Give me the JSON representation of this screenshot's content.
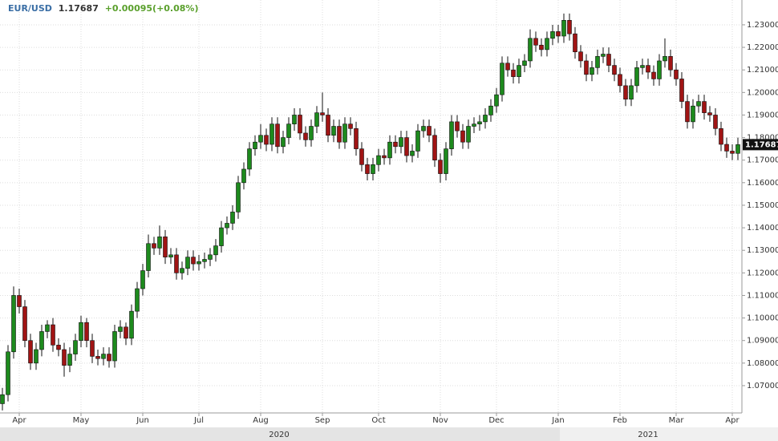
{
  "chart_data": {
    "type": "candlestick",
    "symbol": "EUR/USD",
    "last_price": 1.17687,
    "change": "+0.00095(+0.08%)",
    "years": [
      "2020",
      "2021"
    ],
    "up_color": "#1d8a1d",
    "down_color": "#a01414",
    "grid": true,
    "ylim": [
      1.0579,
      1.241
    ],
    "yticks": [
      {
        "value": 1.07,
        "label": "1.07000"
      },
      {
        "value": 1.08,
        "label": "1.08000"
      },
      {
        "value": 1.09,
        "label": "1.09000"
      },
      {
        "value": 1.1,
        "label": "1.10000"
      },
      {
        "value": 1.11,
        "label": "1.11000"
      },
      {
        "value": 1.12,
        "label": "1.12000"
      },
      {
        "value": 1.13,
        "label": "1.13000"
      },
      {
        "value": 1.14,
        "label": "1.14000"
      },
      {
        "value": 1.15,
        "label": "1.15000"
      },
      {
        "value": 1.16,
        "label": "1.16000"
      },
      {
        "value": 1.17,
        "label": "1.17000"
      },
      {
        "value": 1.18,
        "label": "1.18000"
      },
      {
        "value": 1.19,
        "label": "1.19000"
      },
      {
        "value": 1.2,
        "label": "1.20000"
      },
      {
        "value": 1.21,
        "label": "1.21000"
      },
      {
        "value": 1.22,
        "label": "1.22000"
      },
      {
        "value": 1.23,
        "label": "1.23000"
      }
    ],
    "categories": [
      null,
      null,
      null,
      "Apr",
      null,
      null,
      null,
      null,
      null,
      null,
      null,
      null,
      null,
      null,
      "May",
      null,
      null,
      null,
      null,
      null,
      null,
      null,
      null,
      null,
      null,
      "Jun",
      null,
      null,
      null,
      null,
      null,
      null,
      null,
      null,
      null,
      "Jul",
      null,
      null,
      null,
      null,
      null,
      null,
      null,
      null,
      null,
      null,
      "Aug",
      null,
      null,
      null,
      null,
      null,
      null,
      null,
      null,
      null,
      null,
      "Sep",
      null,
      null,
      null,
      null,
      null,
      null,
      null,
      null,
      null,
      "Oct",
      null,
      null,
      null,
      null,
      null,
      null,
      null,
      null,
      null,
      null,
      "Nov",
      null,
      null,
      null,
      null,
      null,
      null,
      null,
      null,
      null,
      "Dec",
      null,
      null,
      null,
      null,
      null,
      null,
      null,
      null,
      null,
      null,
      "Jan",
      null,
      null,
      null,
      null,
      null,
      null,
      null,
      null,
      null,
      null,
      "Feb",
      null,
      null,
      null,
      null,
      null,
      null,
      null,
      null,
      null,
      "Mar",
      null,
      null,
      null,
      null,
      null,
      null,
      null,
      null,
      null,
      "Apr",
      null
    ],
    "open": [
      1.062,
      1.066,
      1.085,
      1.11,
      1.105,
      1.09,
      1.08,
      1.086,
      1.094,
      1.097,
      1.088,
      1.086,
      1.079,
      1.084,
      1.09,
      1.098,
      1.09,
      1.083,
      1.082,
      1.084,
      1.081,
      1.094,
      1.096,
      1.091,
      1.103,
      1.113,
      1.121,
      1.133,
      1.131,
      1.136,
      1.127,
      1.128,
      1.12,
      1.122,
      1.127,
      1.124,
      1.125,
      1.126,
      1.128,
      1.132,
      1.14,
      1.142,
      1.147,
      1.16,
      1.166,
      1.175,
      1.178,
      1.181,
      1.177,
      1.186,
      1.176,
      1.18,
      1.186,
      1.19,
      1.182,
      1.179,
      1.185,
      1.191,
      1.19,
      1.181,
      1.185,
      1.178,
      1.186,
      1.184,
      1.175,
      1.168,
      1.164,
      1.168,
      1.172,
      1.171,
      1.178,
      1.176,
      1.18,
      1.172,
      1.174,
      1.183,
      1.185,
      1.181,
      1.17,
      1.164,
      1.175,
      1.187,
      1.183,
      1.178,
      1.185,
      1.186,
      1.187,
      1.19,
      1.194,
      1.199,
      1.213,
      1.21,
      1.207,
      1.212,
      1.214,
      1.224,
      1.221,
      1.219,
      1.224,
      1.227,
      1.225,
      1.232,
      1.226,
      1.218,
      1.214,
      1.208,
      1.211,
      1.216,
      1.217,
      1.212,
      1.208,
      1.203,
      1.197,
      1.203,
      1.211,
      1.212,
      1.209,
      1.206,
      1.214,
      1.216,
      1.21,
      1.206,
      1.196,
      1.187,
      1.194,
      1.196,
      1.191,
      1.19,
      1.184,
      1.177,
      1.174,
      1.173
    ],
    "high": [
      1.069,
      1.088,
      1.114,
      1.113,
      1.108,
      1.093,
      1.089,
      1.097,
      1.099,
      1.1,
      1.091,
      1.089,
      1.087,
      1.093,
      1.101,
      1.1,
      1.093,
      1.086,
      1.087,
      1.087,
      1.097,
      1.099,
      1.098,
      1.106,
      1.116,
      1.124,
      1.137,
      1.136,
      1.141,
      1.139,
      1.131,
      1.131,
      1.125,
      1.13,
      1.13,
      1.128,
      1.129,
      1.131,
      1.135,
      1.143,
      1.145,
      1.15,
      1.163,
      1.169,
      1.178,
      1.181,
      1.186,
      1.184,
      1.189,
      1.189,
      1.183,
      1.189,
      1.193,
      1.193,
      1.185,
      1.188,
      1.194,
      1.2,
      1.193,
      1.188,
      1.188,
      1.189,
      1.189,
      1.187,
      1.178,
      1.171,
      1.171,
      1.175,
      1.175,
      1.181,
      1.181,
      1.183,
      1.183,
      1.177,
      1.186,
      1.188,
      1.188,
      1.184,
      1.173,
      1.178,
      1.19,
      1.19,
      1.186,
      1.188,
      1.189,
      1.19,
      1.193,
      1.197,
      1.202,
      1.216,
      1.216,
      1.213,
      1.215,
      1.217,
      1.228,
      1.227,
      1.224,
      1.227,
      1.23,
      1.23,
      1.235,
      1.235,
      1.229,
      1.221,
      1.217,
      1.214,
      1.219,
      1.22,
      1.22,
      1.215,
      1.211,
      1.206,
      1.206,
      1.214,
      1.215,
      1.215,
      1.212,
      1.217,
      1.224,
      1.219,
      1.213,
      1.209,
      1.199,
      1.197,
      1.199,
      1.199,
      1.194,
      1.193,
      1.187,
      1.18,
      1.177,
      1.18
    ],
    "low": [
      1.059,
      1.063,
      1.082,
      1.102,
      1.087,
      1.077,
      1.077,
      1.083,
      1.091,
      1.085,
      1.083,
      1.074,
      1.076,
      1.081,
      1.087,
      1.087,
      1.08,
      1.079,
      1.079,
      1.078,
      1.078,
      1.091,
      1.088,
      1.088,
      1.1,
      1.11,
      1.118,
      1.128,
      1.128,
      1.124,
      1.124,
      1.117,
      1.117,
      1.119,
      1.121,
      1.121,
      1.122,
      1.123,
      1.125,
      1.129,
      1.137,
      1.139,
      1.144,
      1.157,
      1.163,
      1.172,
      1.175,
      1.174,
      1.174,
      1.173,
      1.173,
      1.177,
      1.183,
      1.179,
      1.176,
      1.176,
      1.182,
      1.187,
      1.178,
      1.178,
      1.175,
      1.175,
      1.181,
      1.172,
      1.165,
      1.161,
      1.161,
      1.165,
      1.168,
      1.168,
      1.173,
      1.173,
      1.169,
      1.169,
      1.171,
      1.18,
      1.178,
      1.167,
      1.16,
      1.161,
      1.172,
      1.18,
      1.175,
      1.175,
      1.182,
      1.183,
      1.184,
      1.187,
      1.191,
      1.196,
      1.207,
      1.204,
      1.204,
      1.209,
      1.211,
      1.218,
      1.216,
      1.216,
      1.221,
      1.222,
      1.222,
      1.223,
      1.215,
      1.211,
      1.205,
      1.205,
      1.208,
      1.213,
      1.209,
      1.205,
      1.2,
      1.194,
      1.194,
      1.2,
      1.208,
      1.206,
      1.203,
      1.203,
      1.211,
      1.207,
      1.203,
      1.193,
      1.184,
      1.184,
      1.191,
      1.188,
      1.187,
      1.181,
      1.174,
      1.171,
      1.17,
      1.17
    ],
    "close": [
      1.066,
      1.085,
      1.11,
      1.105,
      1.09,
      1.08,
      1.086,
      1.094,
      1.097,
      1.088,
      1.086,
      1.079,
      1.084,
      1.09,
      1.098,
      1.09,
      1.083,
      1.082,
      1.084,
      1.081,
      1.094,
      1.096,
      1.091,
      1.103,
      1.113,
      1.121,
      1.133,
      1.131,
      1.136,
      1.127,
      1.128,
      1.12,
      1.122,
      1.127,
      1.124,
      1.125,
      1.126,
      1.128,
      1.132,
      1.14,
      1.142,
      1.147,
      1.16,
      1.166,
      1.175,
      1.178,
      1.181,
      1.177,
      1.186,
      1.176,
      1.18,
      1.186,
      1.19,
      1.182,
      1.179,
      1.185,
      1.191,
      1.19,
      1.181,
      1.185,
      1.178,
      1.186,
      1.184,
      1.175,
      1.168,
      1.164,
      1.168,
      1.172,
      1.171,
      1.178,
      1.176,
      1.18,
      1.172,
      1.174,
      1.183,
      1.185,
      1.181,
      1.17,
      1.164,
      1.175,
      1.187,
      1.183,
      1.178,
      1.185,
      1.186,
      1.187,
      1.19,
      1.194,
      1.199,
      1.213,
      1.21,
      1.207,
      1.212,
      1.214,
      1.224,
      1.221,
      1.219,
      1.224,
      1.227,
      1.225,
      1.232,
      1.226,
      1.218,
      1.214,
      1.208,
      1.211,
      1.216,
      1.217,
      1.212,
      1.208,
      1.203,
      1.197,
      1.203,
      1.211,
      1.212,
      1.209,
      1.206,
      1.214,
      1.216,
      1.21,
      1.206,
      1.196,
      1.187,
      1.194,
      1.196,
      1.191,
      1.19,
      1.184,
      1.177,
      1.174,
      1.173,
      1.17687
    ]
  }
}
